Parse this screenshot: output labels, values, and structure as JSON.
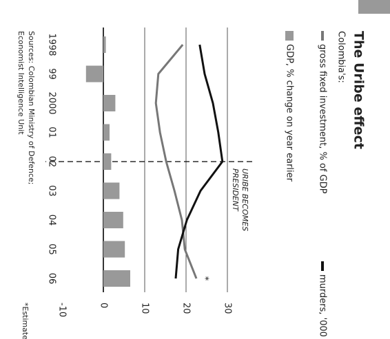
{
  "chart_data": {
    "type": "bar-line",
    "title": "The Uribe effect",
    "subtitle": "Colombia's:",
    "categories": [
      "1998",
      "99",
      "2000",
      "01",
      "02",
      "03",
      "04",
      "05",
      "06"
    ],
    "series": [
      {
        "name": "gross fixed investment, % of GDP",
        "kind": "line",
        "color": "#777777",
        "values": [
          19.2,
          13.3,
          12.7,
          13.7,
          15.2,
          17.2,
          19.0,
          19.7,
          22.5
        ]
      },
      {
        "name": "murders, '000",
        "kind": "line",
        "color": "#111111",
        "values": [
          23.3,
          24.5,
          26.5,
          27.8,
          28.8,
          23.5,
          20.2,
          18.1,
          17.5
        ]
      },
      {
        "name": "GDP, % change on year earlier",
        "kind": "bar",
        "color": "#999999",
        "values": [
          0.6,
          -4.2,
          2.9,
          1.5,
          1.9,
          3.9,
          4.8,
          5.2,
          6.5
        ]
      }
    ],
    "ylim": [
      -10,
      30
    ],
    "yticks": [
      -10,
      0,
      10,
      20,
      30
    ],
    "grid": true,
    "annotation": {
      "category": 4,
      "lines": [
        "URIBE BECOMES",
        "PRESIDENT"
      ]
    },
    "estimate_marker": "*",
    "footnote": "*Estimate",
    "sources": [
      "Sources: Colombian Ministry of Defence;",
      "Economist Intelligence Unit"
    ]
  }
}
